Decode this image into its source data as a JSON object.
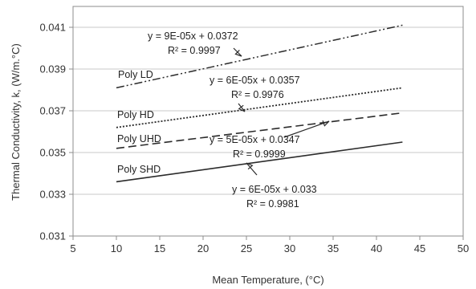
{
  "chart_data": {
    "type": "line",
    "xlabel": "Mean Temperature,  (°C)",
    "ylabel": "Thermal Conductivity, k, (W/m.°C)",
    "xlim": [
      5,
      50
    ],
    "ylim": [
      0.031,
      0.042
    ],
    "xticks": [
      "5",
      "10",
      "15",
      "20",
      "25",
      "30",
      "35",
      "40",
      "45",
      "50"
    ],
    "xtick_values": [
      5,
      10,
      15,
      20,
      25,
      30,
      35,
      40,
      45,
      50
    ],
    "yticks": [
      "0.031",
      "0.033",
      "0.035",
      "0.037",
      "0.039",
      "0.041"
    ],
    "ytick_values": [
      0.031,
      0.033,
      0.035,
      0.037,
      0.039,
      0.041
    ],
    "grid": "horizontal",
    "legend": "none",
    "series": [
      {
        "name": "Poly LD",
        "style": "dash-dot-dot",
        "x": [
          10,
          43
        ],
        "y": [
          0.0381,
          0.0411
        ],
        "equation": "y = 9E-05x + 0.0372",
        "r2": "R² = 0.9997"
      },
      {
        "name": "Poly HD",
        "style": "dotted",
        "x": [
          10,
          43
        ],
        "y": [
          0.0362,
          0.0381
        ],
        "equation": "y = 6E-05x + 0.0357",
        "r2": "R² = 0.9976"
      },
      {
        "name": "Poly UHD",
        "style": "dashed",
        "x": [
          10,
          43
        ],
        "y": [
          0.0352,
          0.0369
        ],
        "equation": "y = 5E-05x + 0.0347",
        "r2": "R² = 0.9999"
      },
      {
        "name": "Poly SHD",
        "style": "solid",
        "x": [
          10,
          43
        ],
        "y": [
          0.0336,
          0.0355
        ],
        "equation": "y = 6E-05x + 0.033",
        "r2": "R² = 0.9981"
      }
    ],
    "colors": {
      "line": "#2b2b2b",
      "grid": "#c8c8c8",
      "frame": "#8c8c8c"
    }
  }
}
